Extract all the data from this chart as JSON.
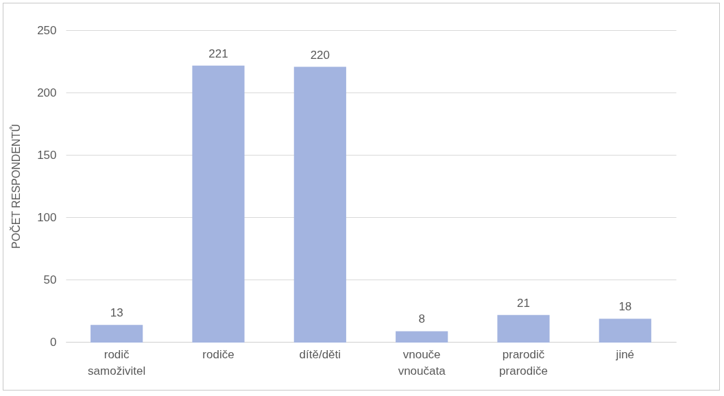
{
  "chart_data": {
    "type": "bar",
    "ylabel": "POČET RESPONDENTŮ",
    "categories": [
      "rodič samoživitel",
      "rodiče",
      "dítě/děti",
      "vnouče vnoučata",
      "prarodič prarodiče",
      "jiné"
    ],
    "values": [
      13,
      221,
      220,
      8,
      21,
      18
    ],
    "color": "#a3b4e0",
    "ylim": [
      0,
      250
    ],
    "yticks": [
      0,
      50,
      100,
      150,
      200,
      250
    ],
    "grid": "y",
    "data_labels": true
  }
}
